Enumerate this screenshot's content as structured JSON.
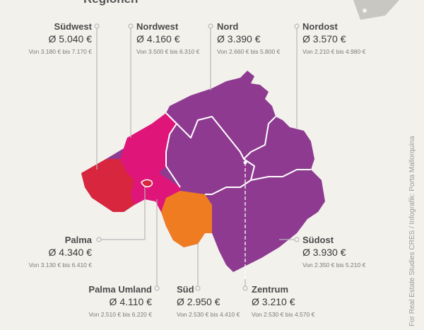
{
  "title": "Regionen",
  "regions": [
    {
      "name": "Südwest",
      "average": "Ø 5.040 €",
      "range": "Von 3.180 € bis 7.170 €"
    },
    {
      "name": "Nordwest",
      "average": "Ø 4.160 €",
      "range": "Von 3.500 € bis 6.310 €"
    },
    {
      "name": "Nord",
      "average": "Ø 3.390 €",
      "range": "Von 2.660 € bis 5.800 €"
    },
    {
      "name": "Nordost",
      "average": "Ø 3.570 €",
      "range": "Von 2.210 € bis 4.980 €"
    },
    {
      "name": "Palma",
      "average": "Ø 4.340 €",
      "range": "Von 3.130 € bis 6.410 €"
    },
    {
      "name": "Südost",
      "average": "Ø 3.930 €",
      "range": "Von 2.350 € bis 5.210 €"
    },
    {
      "name": "Palma Umland",
      "average": "Ø 4.110 €",
      "range": "Von 2.510 € bis 6.220 €"
    },
    {
      "name": "Süd",
      "average": "Ø 2.950 €",
      "range": "Von 2.530 € bis 4.410 €"
    },
    {
      "name": "Zentrum",
      "average": "Ø 3.210 €",
      "range": "Von 2.530 € bis 4.570 €"
    }
  ],
  "credit": "For Real Estate Studies CRES / Infografik: Porta Mallorquina"
}
